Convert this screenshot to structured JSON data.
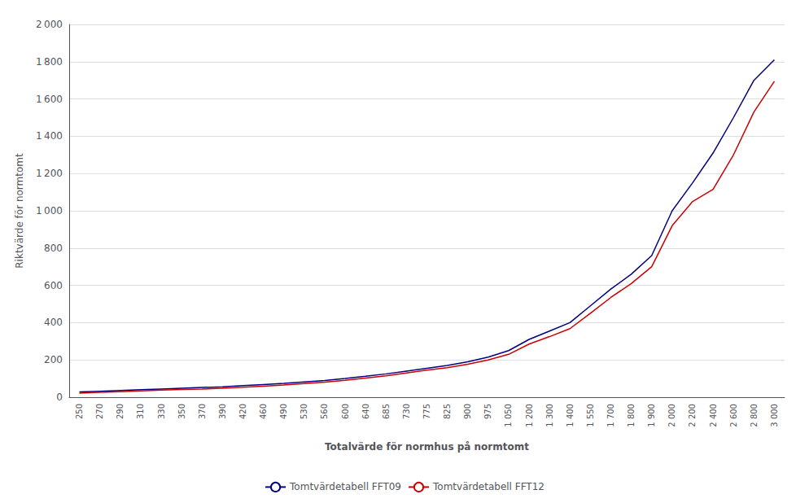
{
  "chart_data": {
    "type": "line",
    "xlabel": "Totalvärde för normhus på normtomt",
    "ylabel": "Riktvärde för normtomt",
    "categories": [
      "250",
      "270",
      "290",
      "310",
      "330",
      "350",
      "370",
      "390",
      "420",
      "460",
      "490",
      "530",
      "560",
      "600",
      "640",
      "685",
      "730",
      "775",
      "825",
      "900",
      "975",
      "1 050",
      "1 200",
      "1 300",
      "1 400",
      "1 550",
      "1 700",
      "1 800",
      "1 900",
      "2 000",
      "2 200",
      "2 400",
      "2 600",
      "2 800",
      "3 000"
    ],
    "series": [
      {
        "name": "Tomtvärdetabell FFT09",
        "color": "#000080",
        "values": [
          28,
          32,
          36,
          40,
          44,
          48,
          52,
          56,
          62,
          68,
          74,
          82,
          90,
          100,
          112,
          125,
          140,
          155,
          170,
          190,
          215,
          250,
          310,
          355,
          400,
          490,
          580,
          660,
          760,
          1000,
          1150,
          1310,
          1500,
          1700,
          1810
        ]
      },
      {
        "name": "Tomtvärdetabell FFT12",
        "color": "#CC0000",
        "values": [
          22,
          26,
          30,
          34,
          38,
          41,
          44,
          48,
          53,
          59,
          65,
          73,
          81,
          91,
          103,
          115,
          130,
          145,
          158,
          177,
          200,
          230,
          285,
          325,
          368,
          450,
          535,
          610,
          700,
          920,
          1050,
          1115,
          1300,
          1530,
          1695
        ]
      }
    ],
    "ylim": [
      0,
      2000
    ],
    "yticks": [
      0,
      200,
      400,
      600,
      800,
      {
        "value": 1000,
        "label": "1 000"
      },
      {
        "value": 1200,
        "label": "1 200"
      },
      {
        "value": 1400,
        "label": "1 400"
      },
      {
        "value": 1600,
        "label": "1 600"
      },
      {
        "value": 1800,
        "label": "1 800"
      },
      {
        "value": 2000,
        "label": "2 000"
      }
    ],
    "grid": true,
    "legend": "bottom"
  }
}
